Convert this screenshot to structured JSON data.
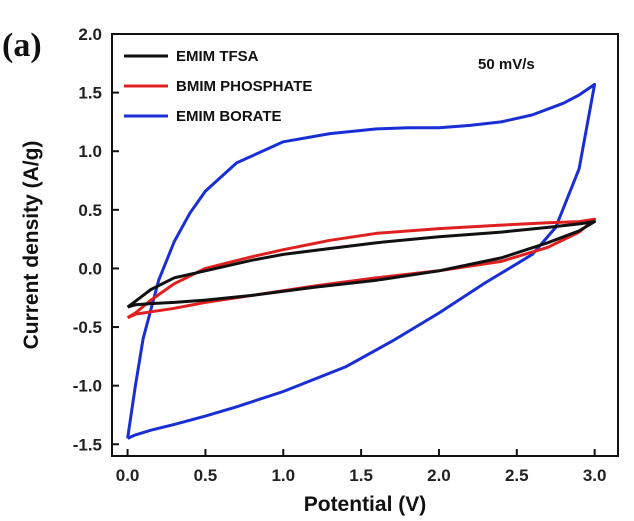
{
  "panel_label": "(a)",
  "annotation": "50 mV/s",
  "chart_data": {
    "type": "line",
    "xlabel": "Potential (V)",
    "ylabel": "Current density (A/g)",
    "xlim": [
      -0.1,
      3.15
    ],
    "ylim": [
      -1.6,
      2.0
    ],
    "xticks": [
      0.0,
      0.5,
      1.0,
      1.5,
      2.0,
      2.5,
      3.0
    ],
    "xtick_labels": [
      "0.0",
      "0.5",
      "1.0",
      "1.5",
      "2.0",
      "2.5",
      "3.0"
    ],
    "yticks": [
      -1.5,
      -1.0,
      -0.5,
      0.0,
      0.5,
      1.0,
      1.5,
      2.0
    ],
    "ytick_labels": [
      "-1.5",
      "-1.0",
      "-0.5",
      "0.0",
      "0.5",
      "1.0",
      "1.5",
      "2.0"
    ],
    "grid": false,
    "legend_position": "top-left",
    "series": [
      {
        "name": "EMIM TFSA",
        "color": "#111111",
        "x": [
          0.0,
          0.05,
          0.15,
          0.3,
          0.5,
          0.8,
          1.0,
          1.3,
          1.6,
          2.0,
          2.4,
          2.7,
          2.9,
          3.0,
          2.9,
          2.7,
          2.4,
          2.0,
          1.6,
          1.2,
          0.8,
          0.5,
          0.3,
          0.15,
          0.05,
          0.0
        ],
        "y": [
          -0.33,
          -0.28,
          -0.18,
          -0.08,
          -0.02,
          0.07,
          0.12,
          0.17,
          0.22,
          0.27,
          0.31,
          0.35,
          0.38,
          0.4,
          0.32,
          0.22,
          0.09,
          -0.02,
          -0.1,
          -0.16,
          -0.23,
          -0.27,
          -0.29,
          -0.3,
          -0.31,
          -0.33
        ]
      },
      {
        "name": "BMIM PHOSPHATE",
        "color": "#e02020",
        "x": [
          0.0,
          0.05,
          0.15,
          0.3,
          0.5,
          0.8,
          1.0,
          1.3,
          1.6,
          2.0,
          2.4,
          2.7,
          2.9,
          3.0,
          2.9,
          2.7,
          2.4,
          2.0,
          1.6,
          1.2,
          0.8,
          0.5,
          0.3,
          0.15,
          0.05,
          0.0
        ],
        "y": [
          -0.42,
          -0.38,
          -0.27,
          -0.13,
          0.0,
          0.1,
          0.16,
          0.24,
          0.3,
          0.34,
          0.37,
          0.39,
          0.4,
          0.42,
          0.31,
          0.18,
          0.06,
          -0.02,
          -0.08,
          -0.15,
          -0.23,
          -0.29,
          -0.34,
          -0.37,
          -0.39,
          -0.42
        ]
      },
      {
        "name": "EMIM BORATE",
        "color": "#1a2ed6",
        "x": [
          0.0,
          0.05,
          0.1,
          0.2,
          0.3,
          0.4,
          0.5,
          0.7,
          1.0,
          1.3,
          1.6,
          1.8,
          2.0,
          2.2,
          2.4,
          2.6,
          2.8,
          2.9,
          3.0,
          2.9,
          2.75,
          2.6,
          2.5,
          2.3,
          2.0,
          1.7,
          1.4,
          1.0,
          0.7,
          0.5,
          0.3,
          0.15,
          0.05,
          0.0
        ],
        "y": [
          -1.45,
          -1.0,
          -0.6,
          -0.1,
          0.23,
          0.47,
          0.66,
          0.9,
          1.08,
          1.15,
          1.19,
          1.2,
          1.2,
          1.22,
          1.25,
          1.31,
          1.41,
          1.48,
          1.57,
          0.85,
          0.35,
          0.12,
          0.04,
          -0.12,
          -0.38,
          -0.62,
          -0.84,
          -1.05,
          -1.18,
          -1.26,
          -1.33,
          -1.38,
          -1.42,
          -1.45
        ]
      }
    ]
  }
}
